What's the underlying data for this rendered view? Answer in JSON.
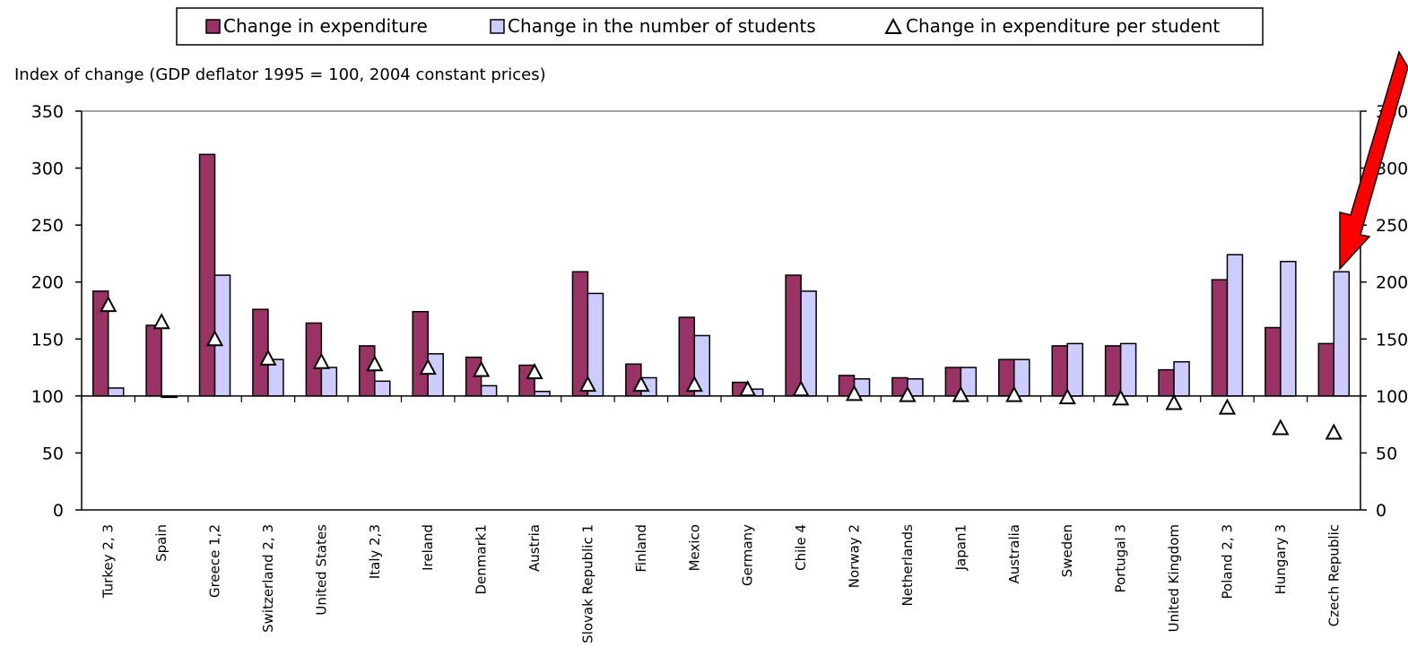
{
  "chart_data": {
    "type": "bar",
    "ylabel": "Index of change (GDP deflator 1995 = 100, 2004 constant prices)",
    "ylim": [
      0,
      350
    ],
    "yticks": [
      0,
      50,
      100,
      150,
      200,
      250,
      300,
      350
    ],
    "right_axis_ticks": [
      "0",
      "50",
      "100",
      "150",
      "200",
      "250",
      "300",
      "350"
    ],
    "baseline": 100,
    "legend_position": "top-center",
    "grid": false,
    "categories": [
      "Turkey 2, 3",
      "Spain",
      "Greece 1,2",
      "Switzerland 2, 3",
      "United States",
      "Italy 2,3",
      "Ireland",
      "Denmark1",
      "Austria",
      "Slovak Republic 1",
      "Finland",
      "Mexico",
      "Germany",
      "Chile 4",
      "Norway 2",
      "Netherlands",
      "Japan1",
      "Australia",
      "Sweden",
      "Portugal 3",
      "United Kingdom",
      "Poland 2, 3",
      "Hungary 3",
      "Czech Republic"
    ],
    "series": [
      {
        "name": "Change in expenditure",
        "kind": "bar",
        "color": "#993366",
        "values": [
          192,
          162,
          312,
          176,
          164,
          144,
          174,
          134,
          127,
          209,
          128,
          169,
          112,
          206,
          118,
          116,
          125,
          132,
          144,
          144,
          123,
          202,
          160,
          146
        ]
      },
      {
        "name": "Change in the number of students",
        "kind": "bar",
        "color": "#ccccff",
        "values": [
          107,
          99,
          206,
          132,
          125,
          113,
          137,
          109,
          104,
          190,
          116,
          153,
          106,
          192,
          115,
          115,
          125,
          132,
          146,
          146,
          130,
          224,
          218,
          209
        ]
      },
      {
        "name": "Change in expenditure per student",
        "kind": "marker",
        "marker": "triangle",
        "values": [
          180,
          165,
          150,
          133,
          130,
          128,
          125,
          123,
          121,
          110,
          110,
          110,
          106,
          106,
          102,
          101,
          101,
          101,
          99,
          98,
          94,
          90,
          72,
          68
        ]
      }
    ],
    "annotations": [
      {
        "type": "arrow",
        "color": "#ff0000",
        "target": "Czech Republic"
      }
    ]
  }
}
